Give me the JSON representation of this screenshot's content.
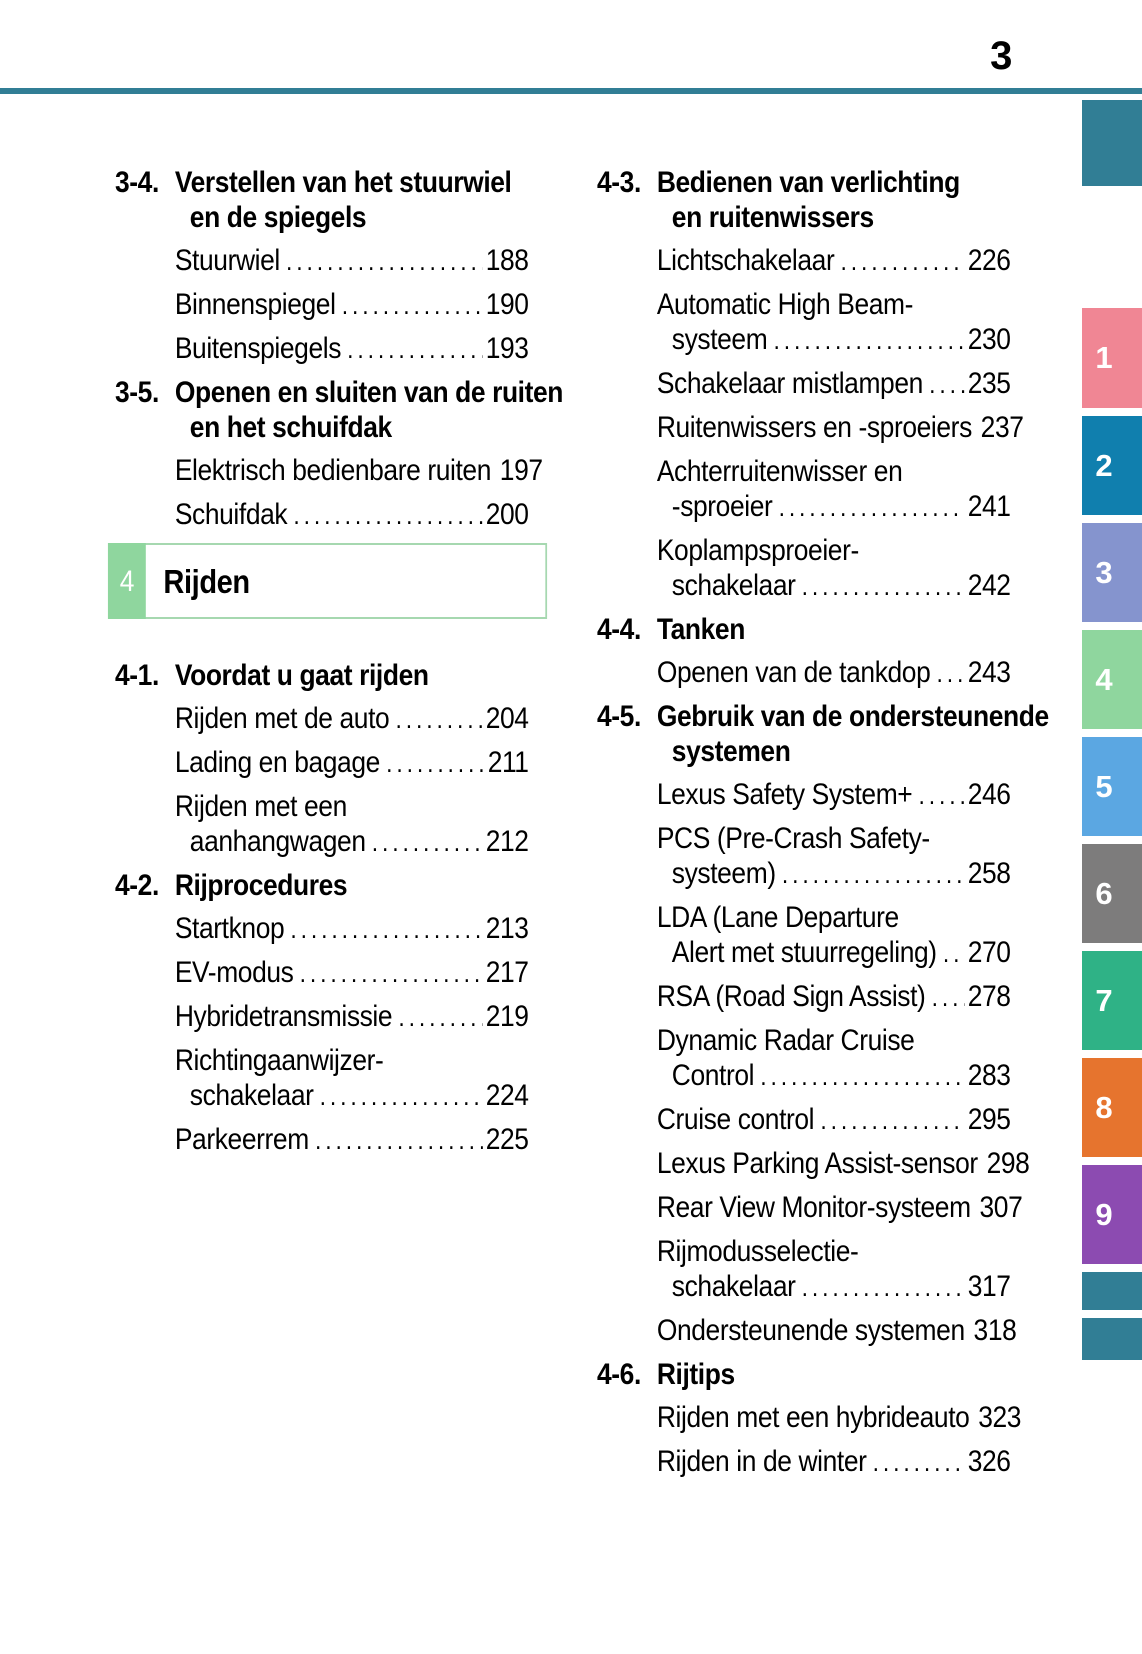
{
  "page_number": "3",
  "colors": {
    "teal": "#317E95",
    "chapter_green": "#8FD69E",
    "chapter_box_border": "#A6D8B0",
    "text": "#000000"
  },
  "toc": {
    "left": [
      {
        "kind": "section",
        "num": "3-4.",
        "lines": [
          "Verstellen van het stuurwiel",
          "en de spiegels"
        ]
      },
      {
        "kind": "entry",
        "lines": [
          "Stuurwiel"
        ],
        "page": "188"
      },
      {
        "kind": "entry",
        "lines": [
          "Binnenspiegel"
        ],
        "page": "190"
      },
      {
        "kind": "entry",
        "lines": [
          "Buitenspiegels"
        ],
        "page": "193"
      },
      {
        "kind": "section",
        "num": "3-5.",
        "lines": [
          "Openen en sluiten van de ruiten",
          "en het schuifdak"
        ]
      },
      {
        "kind": "entry",
        "lines": [
          "Elektrisch bedienbare ruiten"
        ],
        "page": "197"
      },
      {
        "kind": "entry",
        "lines": [
          "Schuifdak"
        ],
        "page": "200"
      },
      {
        "kind": "chapter",
        "num": "4",
        "title": "Rijden"
      },
      {
        "kind": "section",
        "num": "4-1.",
        "lines": [
          "Voordat u gaat rijden"
        ]
      },
      {
        "kind": "entry",
        "lines": [
          "Rijden met de auto"
        ],
        "page": "204"
      },
      {
        "kind": "entry",
        "lines": [
          "Lading en bagage"
        ],
        "page": "211"
      },
      {
        "kind": "entry",
        "lines": [
          "Rijden met een",
          "aanhangwagen"
        ],
        "page": "212"
      },
      {
        "kind": "section",
        "num": "4-2.",
        "lines": [
          "Rijprocedures"
        ]
      },
      {
        "kind": "entry",
        "lines": [
          "Startknop"
        ],
        "page": "213"
      },
      {
        "kind": "entry",
        "lines": [
          "EV-modus"
        ],
        "page": "217"
      },
      {
        "kind": "entry",
        "lines": [
          "Hybridetransmissie"
        ],
        "page": "219"
      },
      {
        "kind": "entry",
        "lines": [
          "Richtingaanwijzer-",
          "schakelaar"
        ],
        "page": "224"
      },
      {
        "kind": "entry",
        "lines": [
          "Parkeerrem"
        ],
        "page": "225"
      }
    ],
    "right": [
      {
        "kind": "section",
        "num": "4-3.",
        "lines": [
          "Bedienen van verlichting",
          "en ruitenwissers"
        ]
      },
      {
        "kind": "entry",
        "lines": [
          "Lichtschakelaar"
        ],
        "page": "226"
      },
      {
        "kind": "entry",
        "lines": [
          "Automatic High Beam-",
          "systeem"
        ],
        "page": "230"
      },
      {
        "kind": "entry",
        "lines": [
          "Schakelaar mistlampen"
        ],
        "page": "235"
      },
      {
        "kind": "entry",
        "lines": [
          "Ruitenwissers en -sproeiers"
        ],
        "page": "237"
      },
      {
        "kind": "entry",
        "lines": [
          "Achterruitenwisser en",
          "-sproeier"
        ],
        "page": "241"
      },
      {
        "kind": "entry",
        "lines": [
          "Koplampsproeier-",
          "schakelaar"
        ],
        "page": "242"
      },
      {
        "kind": "section",
        "num": "4-4.",
        "lines": [
          "Tanken"
        ]
      },
      {
        "kind": "entry",
        "lines": [
          "Openen van de tankdop"
        ],
        "page": "243"
      },
      {
        "kind": "section",
        "num": "4-5.",
        "lines": [
          "Gebruik van de ondersteunende",
          "systemen"
        ]
      },
      {
        "kind": "entry",
        "lines": [
          "Lexus Safety System+"
        ],
        "page": "246"
      },
      {
        "kind": "entry",
        "lines": [
          "PCS (Pre-Crash Safety-",
          "systeem)"
        ],
        "page": "258"
      },
      {
        "kind": "entry",
        "lines": [
          "LDA (Lane Departure",
          "Alert met stuurregeling)"
        ],
        "page": "270"
      },
      {
        "kind": "entry",
        "lines": [
          "RSA (Road Sign Assist)"
        ],
        "page": "278"
      },
      {
        "kind": "entry",
        "lines": [
          "Dynamic Radar Cruise",
          "Control"
        ],
        "page": "283"
      },
      {
        "kind": "entry",
        "lines": [
          "Cruise control"
        ],
        "page": "295"
      },
      {
        "kind": "entry",
        "lines": [
          "Lexus Parking Assist-sensor"
        ],
        "page": "298"
      },
      {
        "kind": "entry",
        "lines": [
          "Rear View Monitor-systeem"
        ],
        "page": "307"
      },
      {
        "kind": "entry",
        "lines": [
          "Rijmodusselectie-",
          "schakelaar"
        ],
        "page": "317"
      },
      {
        "kind": "entry",
        "lines": [
          "Ondersteunende systemen"
        ],
        "page": "318"
      },
      {
        "kind": "section",
        "num": "4-6.",
        "lines": [
          "Rijtips"
        ]
      },
      {
        "kind": "entry",
        "lines": [
          "Rijden met een hybrideauto"
        ],
        "page": "323"
      },
      {
        "kind": "entry",
        "lines": [
          "Rijden in de winter"
        ],
        "page": "326"
      }
    ]
  },
  "sidebar": {
    "tabs": [
      {
        "label": "",
        "color": "#317E95",
        "kind": "blank"
      },
      {
        "label": "1",
        "color": "#F08694",
        "kind": "num-first"
      },
      {
        "label": "2",
        "color": "#107FAE",
        "kind": "num"
      },
      {
        "label": "3",
        "color": "#8594CE",
        "kind": "num"
      },
      {
        "label": "4",
        "color": "#8FD69E",
        "kind": "num"
      },
      {
        "label": "5",
        "color": "#5BA7E2",
        "kind": "num"
      },
      {
        "label": "6",
        "color": "#7D7C7C",
        "kind": "num"
      },
      {
        "label": "7",
        "color": "#2FB286",
        "kind": "num"
      },
      {
        "label": "8",
        "color": "#E6742E",
        "kind": "num"
      },
      {
        "label": "9",
        "color": "#8C4BB1",
        "kind": "num"
      },
      {
        "label": "",
        "color": "#317E95",
        "kind": "small"
      },
      {
        "label": "",
        "color": "#317E95",
        "kind": "small2"
      }
    ]
  }
}
